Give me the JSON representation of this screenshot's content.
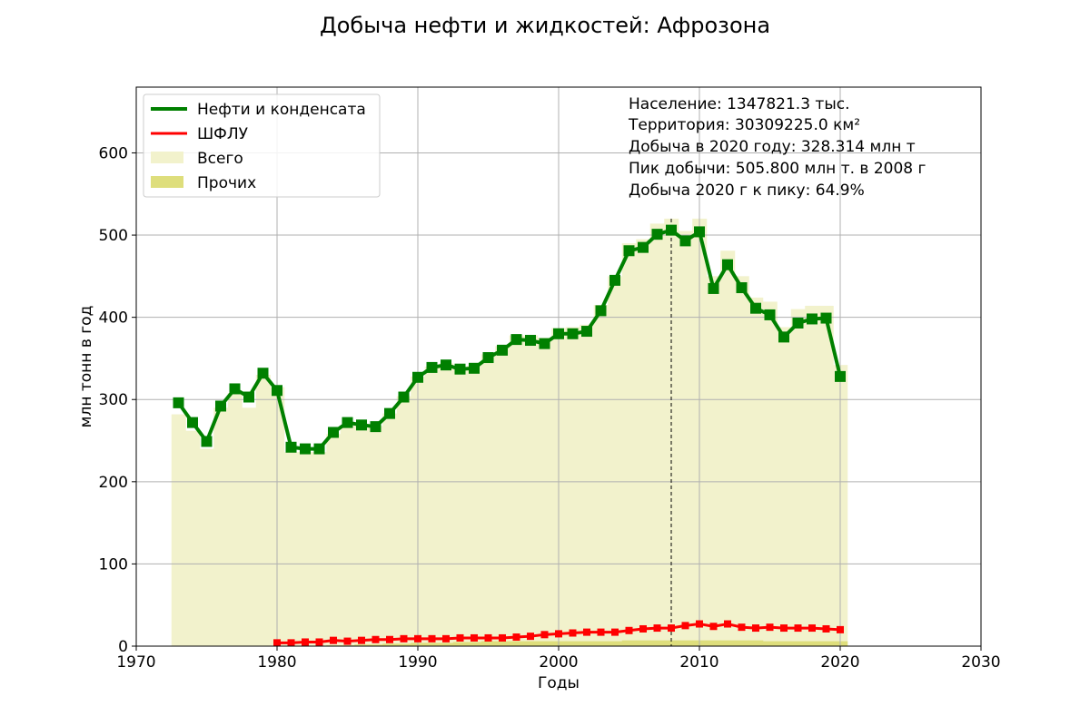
{
  "chart_data": {
    "type": "line",
    "title": "Добыча нефти и жидкостей: Афрозона",
    "xlabel": "Годы",
    "ylabel": "млн тонн в год",
    "xlim": [
      1970,
      2030
    ],
    "ylim": [
      0,
      680
    ],
    "xticks": [
      1970,
      1980,
      1990,
      2000,
      2010,
      2020,
      2030
    ],
    "yticks": [
      0,
      100,
      200,
      300,
      400,
      500,
      600
    ],
    "grid": true,
    "legend_position": "top-left",
    "peak_year": 2008,
    "colors": {
      "oil": "#008000",
      "ngl": "#ff0000",
      "total": "#f2f2cc",
      "other": "#dede7c"
    },
    "legend": [
      "Нефти и конденсата",
      "ШФЛУ",
      "Всего",
      "Прочих"
    ],
    "info": [
      "Население: 1347821.3 тыс.",
      "Территория: 30309225.0 км²",
      "Добыча в 2020 году: 328.314 млн т",
      "Пик добычи: 505.800 млн т. в 2008 г",
      "Добыча 2020 г к пику: 64.9%"
    ],
    "series": [
      {
        "name": "Нефти и конденсата",
        "type": "line",
        "x": [
          1973,
          1974,
          1975,
          1976,
          1977,
          1978,
          1979,
          1980,
          1981,
          1982,
          1983,
          1984,
          1985,
          1986,
          1987,
          1988,
          1989,
          1990,
          1991,
          1992,
          1993,
          1994,
          1995,
          1996,
          1997,
          1998,
          1999,
          2000,
          2001,
          2002,
          2003,
          2004,
          2005,
          2006,
          2007,
          2008,
          2009,
          2010,
          2011,
          2012,
          2013,
          2014,
          2015,
          2016,
          2017,
          2018,
          2019,
          2020
        ],
        "values": [
          296,
          272,
          249,
          292,
          313,
          303,
          332,
          311,
          242,
          240,
          240,
          260,
          272,
          269,
          267,
          283,
          303,
          327,
          339,
          342,
          337,
          338,
          351,
          360,
          373,
          372,
          368,
          380,
          380,
          383,
          408,
          445,
          481,
          485,
          501,
          506,
          493,
          504,
          435,
          464,
          436,
          411,
          403,
          376,
          393,
          398,
          399,
          328
        ]
      },
      {
        "name": "ШФЛУ",
        "type": "line",
        "x": [
          1980,
          1981,
          1982,
          1983,
          1984,
          1985,
          1986,
          1987,
          1988,
          1989,
          1990,
          1991,
          1992,
          1993,
          1994,
          1995,
          1996,
          1997,
          1998,
          1999,
          2000,
          2001,
          2002,
          2003,
          2004,
          2005,
          2006,
          2007,
          2008,
          2009,
          2010,
          2011,
          2012,
          2013,
          2014,
          2015,
          2016,
          2017,
          2018,
          2019,
          2020
        ],
        "values": [
          4,
          4,
          5,
          5,
          7,
          6,
          7,
          8,
          8,
          9,
          9,
          9,
          9,
          10,
          10,
          10,
          10,
          11,
          12,
          14,
          15,
          16,
          17,
          17,
          17,
          19,
          21,
          22,
          22,
          25,
          27,
          24,
          27,
          23,
          22,
          23,
          22,
          22,
          22,
          21,
          20
        ]
      },
      {
        "name": "Всего",
        "type": "bar",
        "x": [
          1973,
          1974,
          1975,
          1976,
          1977,
          1978,
          1979,
          1980,
          1981,
          1982,
          1983,
          1984,
          1985,
          1986,
          1987,
          1988,
          1989,
          1990,
          1991,
          1992,
          1993,
          1994,
          1995,
          1996,
          1997,
          1998,
          1999,
          2000,
          2001,
          2002,
          2003,
          2004,
          2005,
          2006,
          2007,
          2008,
          2009,
          2010,
          2011,
          2012,
          2013,
          2014,
          2015,
          2016,
          2017,
          2018,
          2019,
          2020
        ],
        "values": [
          282,
          262,
          240,
          290,
          308,
          290,
          330,
          315,
          236,
          236,
          236,
          258,
          268,
          268,
          268,
          283,
          304,
          328,
          340,
          344,
          340,
          341,
          355,
          365,
          378,
          378,
          375,
          387,
          388,
          391,
          415,
          450,
          490,
          495,
          514,
          520,
          505,
          520,
          450,
          481,
          450,
          424,
          419,
          388,
          410,
          414,
          414,
          342
        ]
      },
      {
        "name": "Прочих",
        "type": "bar",
        "x": [
          1973,
          1974,
          1975,
          1976,
          1977,
          1978,
          1979,
          1980,
          1981,
          1982,
          1983,
          1984,
          1985,
          1986,
          1987,
          1988,
          1989,
          1990,
          1991,
          1992,
          1993,
          1994,
          1995,
          1996,
          1997,
          1998,
          1999,
          2000,
          2001,
          2002,
          2003,
          2004,
          2005,
          2006,
          2007,
          2008,
          2009,
          2010,
          2011,
          2012,
          2013,
          2014,
          2015,
          2016,
          2017,
          2018,
          2019,
          2020
        ],
        "values": [
          0,
          0,
          0,
          0,
          0,
          0,
          0,
          0,
          0,
          0,
          0,
          1,
          1,
          2,
          2,
          3,
          3,
          4,
          4,
          4,
          5,
          5,
          6,
          6,
          6,
          6,
          6,
          6,
          6,
          6,
          6,
          6,
          7,
          7,
          7,
          7,
          7,
          7,
          7,
          7,
          7,
          7,
          6,
          6,
          6,
          6,
          6,
          6
        ]
      }
    ]
  }
}
